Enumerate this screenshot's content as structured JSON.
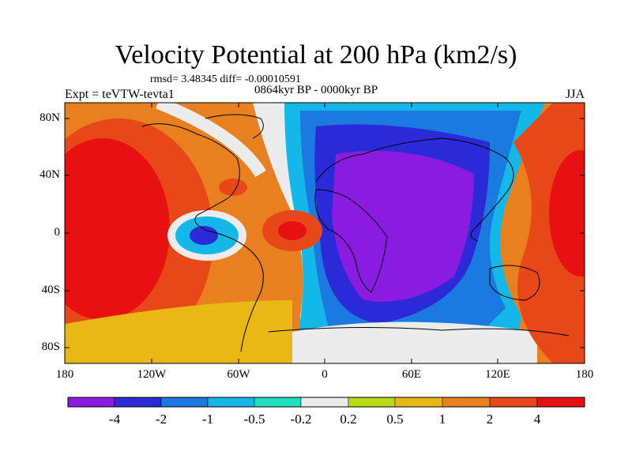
{
  "header": {
    "title": "Velocity Potential at 200 hPa (km2/s)",
    "stats": "rmsd= 3.48345 diff= -0.00010591",
    "period": "0864kyr BP - 0000kyr BP",
    "experiment": "Expt = teVTW-tevta1",
    "season": "JJA"
  },
  "axes": {
    "lat_labels": [
      "80N",
      "40N",
      "0",
      "40S",
      "80S"
    ],
    "lon_labels": [
      "180",
      "120W",
      "60W",
      "0",
      "60E",
      "120E",
      "180"
    ]
  },
  "colorbar": {
    "labels": [
      "-4",
      "-2",
      "-1",
      "-0.5",
      "-0.2",
      "0.2",
      "0.5",
      "1",
      "2",
      "4"
    ],
    "colors": [
      "#8a1be0",
      "#2a2ad8",
      "#1a7ae0",
      "#14b8e8",
      "#1ee0c0",
      "#ececec",
      "#b8dc14",
      "#e8b814",
      "#e88020",
      "#e84818",
      "#e81010"
    ]
  }
}
